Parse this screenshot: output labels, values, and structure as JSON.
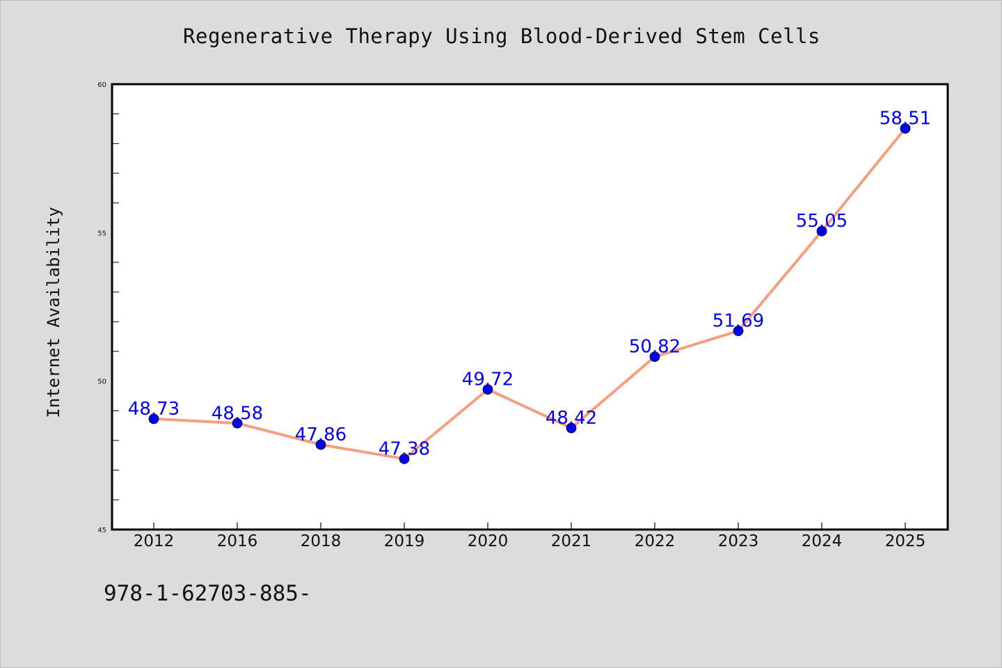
{
  "chart_data": {
    "type": "line",
    "title": "Regenerative Therapy Using Blood-Derived Stem Cells",
    "xlabel": "",
    "ylabel": "Internet Availability",
    "categories": [
      "2012",
      "2016",
      "2018",
      "2019",
      "2020",
      "2021",
      "2022",
      "2023",
      "2024",
      "2025"
    ],
    "series": [
      {
        "values": [
          48.73,
          48.58,
          47.86,
          47.38,
          49.72,
          48.42,
          50.82,
          51.69,
          55.05,
          58.51
        ],
        "data_labels": [
          "48.73",
          "48.58",
          "47.86",
          "47.38",
          "49.72",
          "48.42",
          "50.82",
          "51.69",
          "55.05",
          "58.51"
        ],
        "line_color": "#f4a07e",
        "marker_color": "#0000ee",
        "label_color": "#0000ee"
      }
    ],
    "ylim": [
      45,
      60
    ],
    "yticks_major": [
      "45",
      "50",
      "55",
      "60"
    ],
    "grid": false,
    "legend": "none"
  },
  "footer_text": "978-1-62703-885-"
}
